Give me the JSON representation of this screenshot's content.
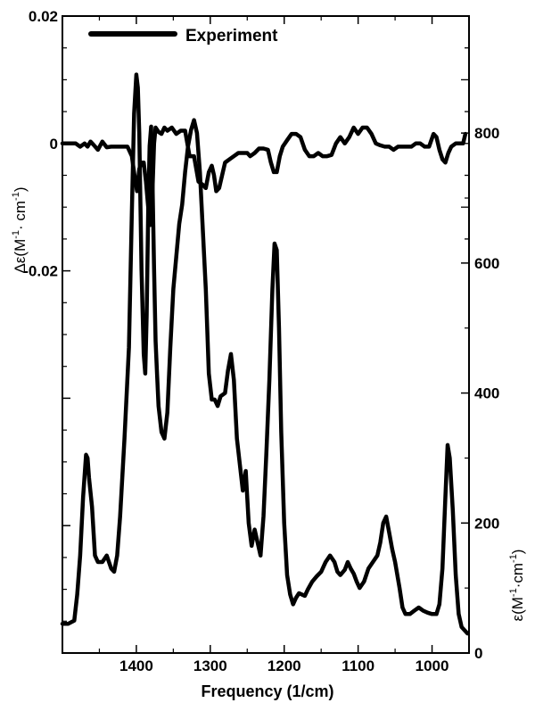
{
  "chart_data": {
    "type": "line",
    "xlabel": "Frequency (1/cm)",
    "x_reversed": true,
    "xlim": [
      1500,
      950
    ],
    "x_ticks": [
      1400,
      1300,
      1200,
      1100,
      1000
    ],
    "legend": {
      "label": "Experiment",
      "placement": "top-left"
    },
    "left_axis": {
      "label_main": "Δε(M",
      "label_sup1": "-1",
      "label_mid": "· cm",
      "label_sup2": "-1",
      "label_end": ")",
      "ylim": [
        -0.08,
        0.02
      ],
      "tick_labels": [
        {
          "value": 0.02,
          "text": "0.02"
        },
        {
          "value": 0,
          "text": "0"
        },
        {
          "value": -0.02,
          "text": "-0.02"
        }
      ],
      "major_ticks": [
        0.02,
        0,
        -0.02,
        -0.04,
        -0.06
      ],
      "minor_ticks": [
        0.015,
        0.01,
        0.005,
        -0.005,
        -0.01,
        -0.015,
        -0.025,
        -0.03,
        -0.035,
        -0.045,
        -0.05,
        -0.055,
        -0.065,
        -0.07,
        -0.075
      ]
    },
    "right_axis": {
      "label_main": "ε(M",
      "label_sup1": "-1",
      "label_mid": "·cm",
      "label_sup2": "-1",
      "label_end": ")",
      "ylim": [
        0,
        980
      ],
      "tick_labels": [
        {
          "value": 0,
          "text": "0"
        },
        {
          "value": 200,
          "text": "200"
        },
        {
          "value": 400,
          "text": "400"
        },
        {
          "value": 600,
          "text": "600"
        },
        {
          "value": 800,
          "text": "800"
        }
      ],
      "minor_ticks": [
        100,
        300,
        500,
        700
      ],
      "upper_ticks_left_scale": [
        0.015,
        0.01,
        0.005,
        0,
        -0.005,
        -0.01,
        -0.015
      ]
    },
    "series": [
      {
        "name": "Experiment",
        "axis": "left",
        "x": [
          1500,
          1490,
          1482,
          1476,
          1470,
          1466,
          1462,
          1458,
          1452,
          1446,
          1440,
          1434,
          1428,
          1420,
          1412,
          1406,
          1402,
          1399,
          1396,
          1393,
          1390,
          1387,
          1384,
          1381,
          1378,
          1376,
          1374,
          1370,
          1366,
          1362,
          1358,
          1352,
          1346,
          1340,
          1334,
          1328,
          1322,
          1316,
          1310,
          1306,
          1302,
          1298,
          1295,
          1292,
          1288,
          1284,
          1280,
          1274,
          1268,
          1262,
          1258,
          1254,
          1250,
          1246,
          1240,
          1234,
          1228,
          1222,
          1218,
          1214,
          1210,
          1206,
          1202,
          1196,
          1190,
          1184,
          1178,
          1172,
          1166,
          1160,
          1154,
          1148,
          1142,
          1136,
          1130,
          1124,
          1118,
          1112,
          1106,
          1100,
          1094,
          1088,
          1082,
          1076,
          1070,
          1064,
          1058,
          1052,
          1046,
          1040,
          1034,
          1028,
          1022,
          1016,
          1010,
          1004,
          998,
          994,
          990,
          986,
          982,
          978,
          974,
          968,
          962,
          958,
          955
        ],
        "y": [
          0,
          0,
          0,
          -0.0005,
          0,
          -0.0005,
          0.0003,
          -0.0002,
          -0.001,
          0.0003,
          -0.0006,
          -0.0005,
          -0.0005,
          -0.0005,
          -0.0005,
          -0.002,
          -0.0055,
          -0.0075,
          -0.004,
          -0.003,
          -0.003,
          -0.006,
          -0.01,
          -0.0128,
          -0.007,
          0.0,
          0.0025,
          0.0018,
          0.0015,
          0.0025,
          0.002,
          0.0025,
          0.0015,
          0.002,
          0.002,
          -0.002,
          -0.002,
          -0.006,
          -0.0065,
          -0.007,
          -0.0045,
          -0.0035,
          -0.005,
          -0.0075,
          -0.007,
          -0.005,
          -0.003,
          -0.0025,
          -0.002,
          -0.0015,
          -0.0015,
          -0.0015,
          -0.0015,
          -0.002,
          -0.0015,
          -0.0008,
          -0.0008,
          -0.001,
          -0.003,
          -0.0045,
          -0.0045,
          -0.002,
          -0.0005,
          0.0005,
          0.0015,
          0.0015,
          0.001,
          -0.001,
          -0.002,
          -0.002,
          -0.0015,
          -0.002,
          -0.002,
          -0.0018,
          0.0,
          0.001,
          0.0,
          0.001,
          0.0025,
          0.0015,
          0.0025,
          0.0025,
          0.0015,
          0.0,
          -0.0003,
          -0.0005,
          -0.0005,
          -0.001,
          -0.0005,
          -0.0005,
          -0.0005,
          -0.0005,
          0.0,
          0.0,
          -0.0005,
          -0.0005,
          0.0015,
          0.001,
          -0.001,
          -0.0025,
          -0.003,
          -0.0015,
          -0.0005,
          0.0,
          0.0,
          0.0,
          0.0015
        ]
      },
      {
        "name": "Experiment",
        "axis": "right",
        "x": [
          1500,
          1492,
          1484,
          1480,
          1476,
          1472,
          1468,
          1466,
          1464,
          1460,
          1456,
          1452,
          1446,
          1440,
          1434,
          1430,
          1426,
          1422,
          1416,
          1410,
          1406,
          1403,
          1400,
          1398,
          1396,
          1393,
          1390,
          1388,
          1386,
          1384,
          1382,
          1380,
          1378,
          1376,
          1374,
          1372,
          1370,
          1366,
          1362,
          1358,
          1354,
          1350,
          1346,
          1342,
          1338,
          1334,
          1330,
          1326,
          1322,
          1318,
          1314,
          1310,
          1306,
          1302,
          1298,
          1294,
          1290,
          1286,
          1280,
          1276,
          1272,
          1268,
          1264,
          1260,
          1256,
          1252,
          1248,
          1244,
          1240,
          1236,
          1232,
          1228,
          1224,
          1220,
          1216,
          1213,
          1210,
          1207,
          1204,
          1200,
          1196,
          1192,
          1188,
          1184,
          1180,
          1176,
          1172,
          1168,
          1162,
          1156,
          1150,
          1144,
          1138,
          1132,
          1128,
          1124,
          1118,
          1114,
          1110,
          1106,
          1102,
          1098,
          1092,
          1086,
          1080,
          1074,
          1070,
          1066,
          1062,
          1058,
          1054,
          1050,
          1044,
          1040,
          1036,
          1030,
          1024,
          1018,
          1012,
          1006,
          1000,
          994,
          990,
          986,
          982,
          979,
          976,
          972,
          968,
          964,
          960,
          956,
          952
        ],
        "y": [
          45,
          45,
          50,
          90,
          150,
          240,
          305,
          300,
          270,
          225,
          150,
          140,
          140,
          150,
          130,
          125,
          150,
          210,
          330,
          470,
          680,
          830,
          890,
          870,
          800,
          590,
          460,
          430,
          520,
          680,
          780,
          810,
          720,
          590,
          480,
          430,
          380,
          340,
          330,
          370,
          470,
          560,
          610,
          660,
          690,
          740,
          780,
          805,
          820,
          800,
          740,
          650,
          560,
          430,
          390,
          390,
          380,
          395,
          400,
          435,
          460,
          420,
          330,
          290,
          250,
          280,
          200,
          165,
          190,
          170,
          150,
          210,
          310,
          420,
          560,
          630,
          620,
          500,
          340,
          200,
          120,
          90,
          75,
          85,
          92,
          90,
          88,
          98,
          110,
          118,
          125,
          140,
          150,
          140,
          125,
          120,
          128,
          140,
          130,
          122,
          110,
          100,
          110,
          130,
          140,
          150,
          170,
          200,
          210,
          185,
          160,
          140,
          100,
          70,
          60,
          60,
          65,
          70,
          65,
          62,
          60,
          60,
          75,
          130,
          240,
          320,
          300,
          220,
          120,
          60,
          40,
          35,
          30
        ]
      }
    ]
  }
}
